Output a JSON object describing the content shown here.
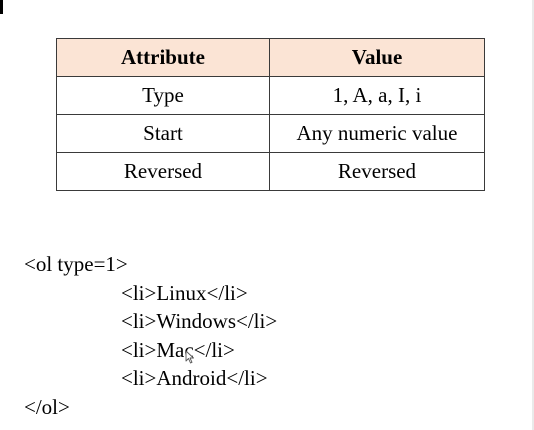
{
  "table": {
    "headers": [
      "Attribute",
      "Value"
    ],
    "rows": [
      [
        "Type",
        "1, A, a, I, i"
      ],
      [
        "Start",
        "Any numeric value"
      ],
      [
        "Reversed",
        "Reversed"
      ]
    ],
    "header_color": "#fbe4d5"
  },
  "code": {
    "lines": [
      "<ol type=1>",
      "<li>Linux</li>",
      "<li>Windows</li>",
      "<li>Mac</li>",
      "<li>Android</li>",
      "</ol>"
    ]
  },
  "icons": {
    "cursor": "mouse-pointer-icon"
  }
}
